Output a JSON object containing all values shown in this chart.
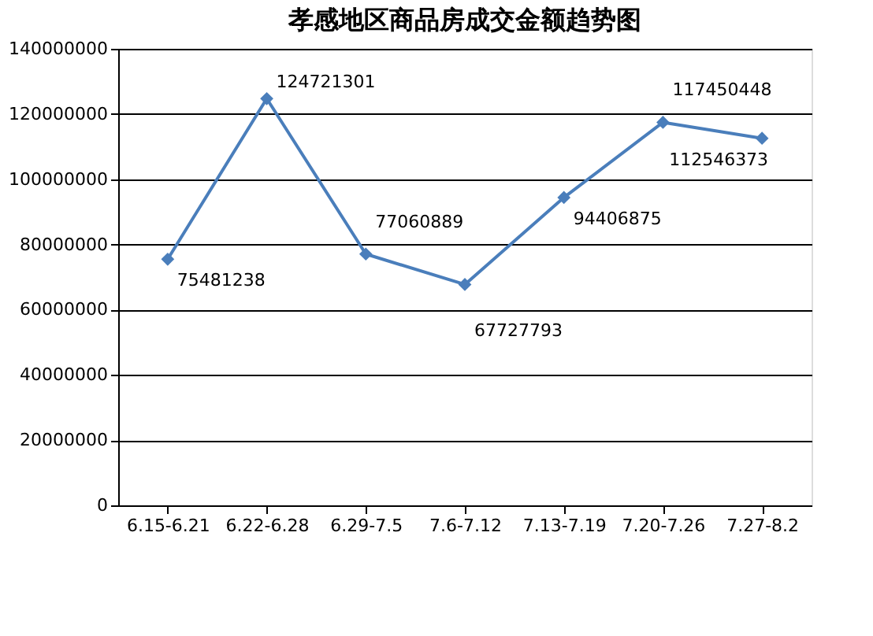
{
  "chart_data": {
    "type": "line",
    "title": "孝感地区商品房成交金额趋势图",
    "categories": [
      "6.15-6.21",
      "6.22-6.28",
      "6.29-7.5",
      "7.6-7.12",
      "7.13-7.19",
      "7.20-7.26",
      "7.27-8.2"
    ],
    "series": [
      {
        "color": "#4a7ebb",
        "values": [
          75481238,
          124721301,
          77060889,
          67727793,
          94406875,
          117450448,
          112546373
        ]
      }
    ],
    "ylim": [
      0,
      140000000
    ],
    "yticks": [
      0,
      20000000,
      40000000,
      60000000,
      80000000,
      100000000,
      120000000,
      140000000
    ],
    "grid": "y",
    "marker": "diamond",
    "line_style": "solid",
    "data_labels": true
  }
}
